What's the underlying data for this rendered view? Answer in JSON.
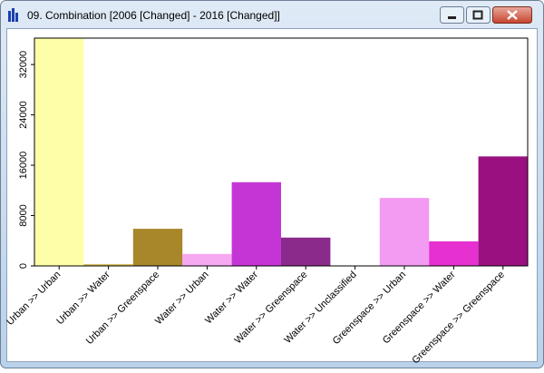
{
  "window": {
    "title": "09. Combination [2006 [Changed] - 2016 [Changed]]"
  },
  "chart_data": {
    "type": "bar",
    "categories": [
      "Urban >> Urban",
      "Urban >> Water",
      "Urban >> Greenspace",
      "Water >> Urban",
      "Water >> Water",
      "Water >> Greenspace",
      "Water >> Unclassified",
      "Greenspace >> Urban",
      "Greenspace >> Water",
      "Greenspace >> Greenspace"
    ],
    "values": [
      36200,
      300,
      5900,
      1900,
      13300,
      4500,
      0,
      10800,
      3900,
      17400
    ],
    "colors": [
      "#fffea8",
      "#d8c060",
      "#a8862a",
      "#f6a8f0",
      "#c435d6",
      "#8a2a8a",
      "#ffffff",
      "#f39af3",
      "#e630d0",
      "#9b1080"
    ],
    "ylim": [
      0,
      36200
    ],
    "yticks": [
      0,
      8000,
      16000,
      24000,
      32000
    ],
    "grid": false
  }
}
